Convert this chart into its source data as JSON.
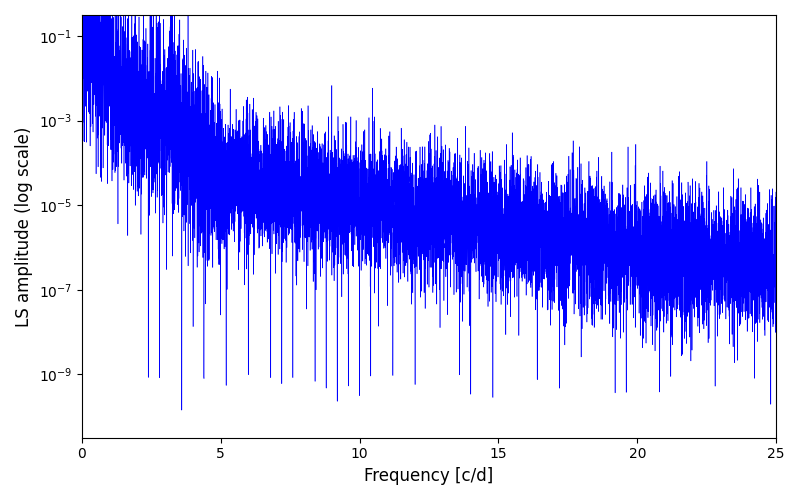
{
  "xlabel": "Frequency [c/d]",
  "ylabel": "LS amplitude (log scale)",
  "line_color": "#0000ff",
  "xlim": [
    0,
    25
  ],
  "ylim_log": [
    -10.5,
    -0.5
  ],
  "background_color": "#ffffff",
  "figsize": [
    8.0,
    5.0
  ],
  "dpi": 100,
  "freq_max": 25.0,
  "n_points": 10000,
  "seed": 12345
}
